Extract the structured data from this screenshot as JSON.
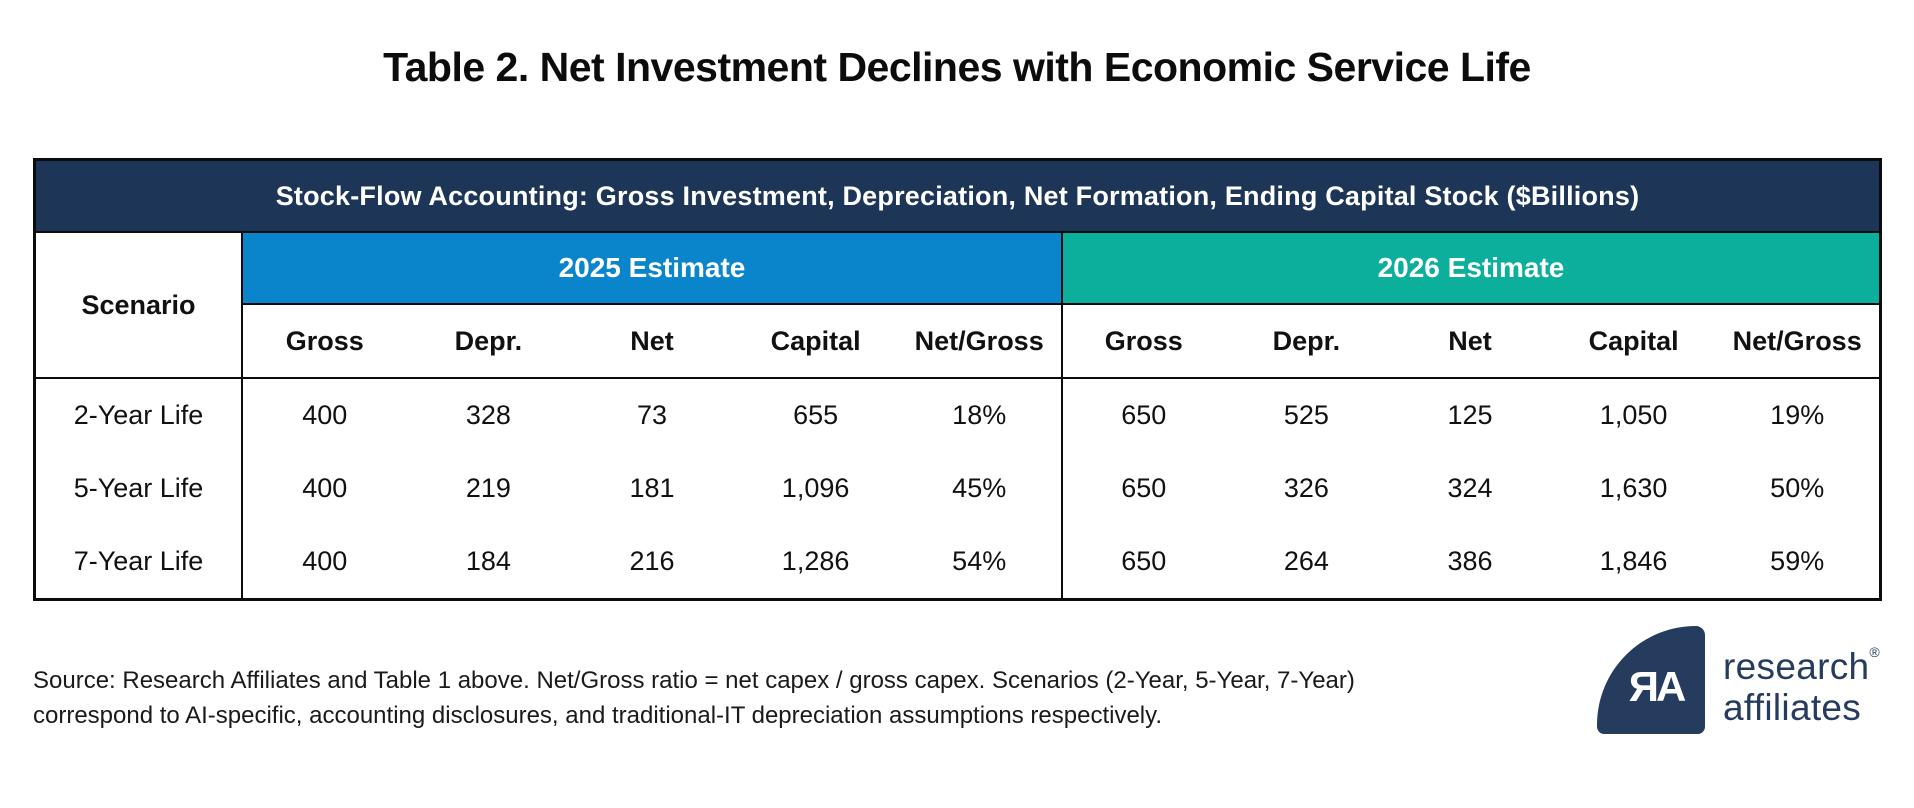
{
  "page": {
    "title": "Table 2. Net Investment Declines with Economic Service Life"
  },
  "table": {
    "banner": "Stock-Flow Accounting: Gross Investment, Depreciation, Net Formation, Ending Capital Stock ($Billions)",
    "scenario_header": "Scenario",
    "groups": [
      {
        "label": "2025 Estimate",
        "color": "#0a85cc"
      },
      {
        "label": "2026 Estimate",
        "color": "#0cae9c"
      }
    ],
    "columns": [
      "Gross",
      "Depr.",
      "Net",
      "Capital",
      "Net/Gross"
    ],
    "rows": [
      {
        "scenario": "2-Year Life",
        "y2025": [
          "400",
          "328",
          "73",
          "655",
          "18%"
        ],
        "y2026": [
          "650",
          "525",
          "125",
          "1,050",
          "19%"
        ]
      },
      {
        "scenario": "5-Year Life",
        "y2025": [
          "400",
          "219",
          "181",
          "1,096",
          "45%"
        ],
        "y2026": [
          "650",
          "326",
          "324",
          "1,630",
          "50%"
        ]
      },
      {
        "scenario": "7-Year Life",
        "y2025": [
          "400",
          "184",
          "216",
          "1,286",
          "54%"
        ],
        "y2026": [
          "650",
          "264",
          "386",
          "1,846",
          "59%"
        ]
      }
    ]
  },
  "footer": {
    "source_line1": "Source: Research Affiliates and Table 1 above. Net/Gross ratio = net capex / gross capex. Scenarios (2-Year, 5-Year, 7-Year)",
    "source_line2": "correspond to AI-specific, accounting disclosures, and traditional-IT depreciation assumptions respectively.",
    "logo": {
      "monogram": "ЯA",
      "word1": "research",
      "word2": "affiliates",
      "registered": "®",
      "navy": "#253c5e"
    }
  },
  "colors": {
    "banner_navy": "#1d3557",
    "blue_2025": "#0a85cc",
    "teal_2026": "#0cae9c",
    "border_black": "#0c0c0c"
  },
  "chart_data": {
    "type": "table",
    "title": "Table 2. Net Investment Declines with Economic Service Life",
    "subtitle": "Stock-Flow Accounting: Gross Investment, Depreciation, Net Formation, Ending Capital Stock ($Billions)",
    "column_groups": [
      "2025 Estimate",
      "2026 Estimate"
    ],
    "columns": [
      "Scenario",
      "2025 Gross",
      "2025 Depr.",
      "2025 Net",
      "2025 Capital",
      "2025 Net/Gross",
      "2026 Gross",
      "2026 Depr.",
      "2026 Net",
      "2026 Capital",
      "2026 Net/Gross"
    ],
    "rows": [
      [
        "2-Year Life",
        400,
        328,
        73,
        655,
        "18%",
        650,
        525,
        125,
        1050,
        "19%"
      ],
      [
        "5-Year Life",
        400,
        219,
        181,
        1096,
        "45%",
        650,
        326,
        324,
        1630,
        "50%"
      ],
      [
        "7-Year Life",
        400,
        184,
        216,
        1286,
        "54%",
        650,
        264,
        386,
        1846,
        "59%"
      ]
    ],
    "source": "Source: Research Affiliates and Table 1 above. Net/Gross ratio = net capex / gross capex. Scenarios (2-Year, 5-Year, 7-Year) correspond to AI-specific, accounting disclosures, and traditional-IT depreciation assumptions respectively."
  }
}
